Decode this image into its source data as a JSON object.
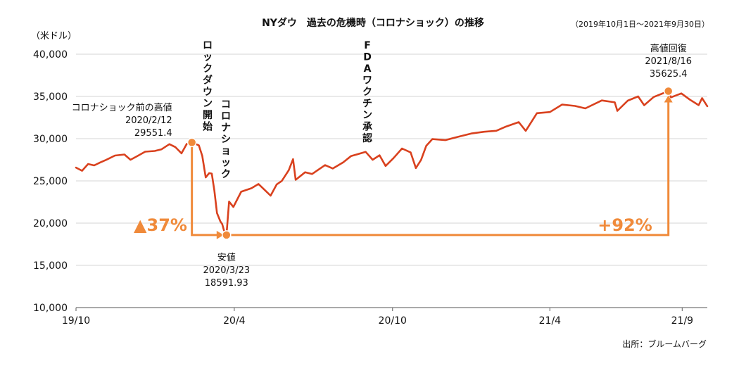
{
  "chart_data": {
    "type": "line",
    "title": "NYダウ　過去の危機時（コロナショック）の推移",
    "subtitle": "（2019年10月1日～2021年9月30日）",
    "ylabel": "（米ドル）",
    "ylim": [
      10000,
      40000
    ],
    "yticks": [
      "10,000",
      "15,000",
      "20,000",
      "25,000",
      "30,000",
      "35,000",
      "40,000"
    ],
    "ytick_values": [
      10000,
      15000,
      20000,
      25000,
      30000,
      35000,
      40000
    ],
    "xlim": [
      "2019-10-01",
      "2021-09-30"
    ],
    "xticks": [
      {
        "label": "19/10",
        "date": "2019-10-01"
      },
      {
        "label": "20/4",
        "date": "2020-04-01"
      },
      {
        "label": "20/10",
        "date": "2020-10-01"
      },
      {
        "label": "21/4",
        "date": "2021-04-01"
      },
      {
        "label": "21/9",
        "date": "2021-09-01"
      }
    ],
    "grid": "horizontal",
    "line_color": "#d9411e",
    "accent_color": "#f08a3a",
    "series": [
      {
        "x": [
          "2019-10-01",
          "2019-10-08",
          "2019-10-15",
          "2019-10-22",
          "2019-10-29",
          "2019-11-05",
          "2019-11-15",
          "2019-11-26",
          "2019-12-03",
          "2019-12-10",
          "2019-12-20",
          "2019-12-31",
          "2020-01-08",
          "2020-01-17",
          "2020-01-24",
          "2020-01-31",
          "2020-02-06",
          "2020-02-12",
          "2020-02-20",
          "2020-02-24",
          "2020-02-28",
          "2020-03-03",
          "2020-03-06",
          "2020-03-09",
          "2020-03-12",
          "2020-03-16",
          "2020-03-18",
          "2020-03-20",
          "2020-03-23",
          "2020-03-26",
          "2020-03-31",
          "2020-04-09",
          "2020-04-21",
          "2020-04-29",
          "2020-05-13",
          "2020-05-20",
          "2020-05-26",
          "2020-06-03",
          "2020-06-08",
          "2020-06-11",
          "2020-06-22",
          "2020-06-30",
          "2020-07-15",
          "2020-07-24",
          "2020-08-05",
          "2020-08-14",
          "2020-08-31",
          "2020-09-08",
          "2020-09-16",
          "2020-09-23",
          "2020-10-02",
          "2020-10-12",
          "2020-10-22",
          "2020-10-28",
          "2020-11-03",
          "2020-11-09",
          "2020-11-16",
          "2020-12-01",
          "2020-12-15",
          "2020-12-31",
          "2021-01-15",
          "2021-01-29",
          "2021-02-08",
          "2021-02-24",
          "2021-03-04",
          "2021-03-17",
          "2021-04-01",
          "2021-04-15",
          "2021-04-30",
          "2021-05-12",
          "2021-05-31",
          "2021-06-15",
          "2021-06-18",
          "2021-06-30",
          "2021-07-12",
          "2021-07-19",
          "2021-07-30",
          "2021-08-16",
          "2021-08-19",
          "2021-08-31",
          "2021-09-10",
          "2021-09-20",
          "2021-09-24",
          "2021-09-30"
        ],
        "y": [
          26573,
          26200,
          27002,
          26830,
          27186,
          27492,
          28004,
          28121,
          27503,
          27881,
          28455,
          28538,
          28745,
          29348,
          28990,
          28256,
          29379,
          29551.4,
          29219,
          27960,
          25409,
          25917,
          25864,
          23851,
          21200,
          20188,
          19898,
          19174,
          18591.93,
          22552,
          21917,
          23719,
          24133,
          24634,
          23247,
          24575,
          24995,
          26270,
          27572,
          25128,
          26024,
          25813,
          26870,
          26469,
          27201,
          27931,
          28430,
          27500,
          28032,
          26763,
          27682,
          28837,
          28363,
          26519,
          27480,
          29157,
          29950,
          29823,
          30200,
          30606,
          30814,
          30930,
          31386,
          31961,
          30924,
          33015,
          33153,
          34035,
          33874,
          33587,
          34529,
          34299,
          33290,
          34502,
          34996,
          33962,
          34935,
          35625.4,
          34894,
          35360,
          34607,
          33970,
          34798,
          33843
        ]
      }
    ],
    "annotations": {
      "pre_high": {
        "label": "コロナショック前の高値",
        "date_text": "2020/2/12",
        "value_text": "29551.4",
        "date": "2020-02-12",
        "value": 29551.4
      },
      "low": {
        "label": "安値",
        "date_text": "2020/3/23",
        "value_text": "18591.93",
        "date": "2020-03-23",
        "value": 18591.93
      },
      "recovery_high": {
        "label": "高値回復",
        "date_text": "2021/8/16",
        "value_text": "35625.4",
        "date": "2021-08-16",
        "value": 35625.4
      },
      "drop_pct": "▲37%",
      "rise_pct": "+92%",
      "events": [
        {
          "text": "ロックダウン開始",
          "date": "2020-03-13"
        },
        {
          "text": "コロナショック",
          "date": "2020-03-23"
        },
        {
          "text": "FDAワクチン承認",
          "date": "2020-08-24"
        }
      ]
    },
    "source": "出所：ブルームバーグ"
  }
}
